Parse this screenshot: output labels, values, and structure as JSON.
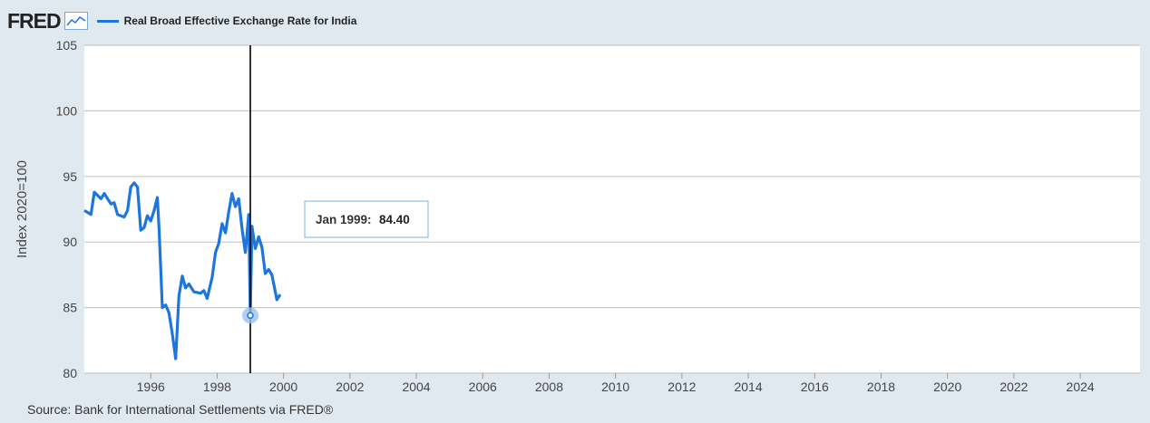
{
  "header": {
    "logo_text": "FRED",
    "logo_icon": "line-graph-icon",
    "series_label": "Real Broad Effective Exchange Rate for India",
    "series_color": "#1d76db"
  },
  "source_text": "Source: Bank for International Settlements via FRED®",
  "tooltip": {
    "date_label": "Jan 1999:",
    "value_label": "84.40",
    "x": 1999.0,
    "y": 84.4
  },
  "chart_data": {
    "type": "line",
    "ylabel": "Index 2020=100",
    "xlabel": "",
    "ylim": [
      80,
      105
    ],
    "xlim": [
      1994.0,
      2025.8
    ],
    "yticks": [
      80,
      85,
      90,
      95,
      100,
      105
    ],
    "xticks": [
      1996,
      1998,
      2000,
      2002,
      2004,
      2006,
      2008,
      2010,
      2012,
      2014,
      2016,
      2018,
      2020,
      2022,
      2024
    ],
    "grid": "horizontal",
    "series": [
      {
        "name": "Real Broad Effective Exchange Rate for India",
        "color": "#1d76db",
        "points": [
          [
            1994.0,
            92.4
          ],
          [
            1994.2,
            92.1
          ],
          [
            1994.3,
            93.8
          ],
          [
            1994.5,
            93.3
          ],
          [
            1994.6,
            93.7
          ],
          [
            1994.8,
            92.9
          ],
          [
            1994.9,
            93.0
          ],
          [
            1995.0,
            92.1
          ],
          [
            1995.2,
            91.9
          ],
          [
            1995.3,
            92.4
          ],
          [
            1995.4,
            94.2
          ],
          [
            1995.5,
            94.5
          ],
          [
            1995.6,
            94.2
          ],
          [
            1995.7,
            90.9
          ],
          [
            1995.8,
            91.1
          ],
          [
            1995.9,
            92.0
          ],
          [
            1996.0,
            91.6
          ],
          [
            1996.1,
            92.4
          ],
          [
            1996.2,
            93.4
          ],
          [
            1996.25,
            91.0
          ],
          [
            1996.35,
            85.0
          ],
          [
            1996.45,
            85.2
          ],
          [
            1996.55,
            84.6
          ],
          [
            1996.65,
            83.0
          ],
          [
            1996.75,
            81.1
          ],
          [
            1996.85,
            85.9
          ],
          [
            1996.95,
            87.4
          ],
          [
            1997.05,
            86.5
          ],
          [
            1997.15,
            86.8
          ],
          [
            1997.3,
            86.2
          ],
          [
            1997.5,
            86.1
          ],
          [
            1997.6,
            86.3
          ],
          [
            1997.7,
            85.7
          ],
          [
            1997.85,
            87.3
          ],
          [
            1997.95,
            89.2
          ],
          [
            1998.05,
            89.9
          ],
          [
            1998.15,
            91.4
          ],
          [
            1998.25,
            90.7
          ],
          [
            1998.35,
            92.3
          ],
          [
            1998.45,
            93.7
          ],
          [
            1998.55,
            92.7
          ],
          [
            1998.65,
            93.3
          ],
          [
            1998.75,
            91.0
          ],
          [
            1998.85,
            89.2
          ],
          [
            1998.95,
            92.1
          ],
          [
            1999.05,
            91.2
          ],
          [
            1999.15,
            89.5
          ],
          [
            1999.25,
            90.4
          ],
          [
            1999.35,
            89.6
          ],
          [
            1999.45,
            87.6
          ],
          [
            1999.55,
            87.9
          ],
          [
            1999.65,
            87.5
          ],
          [
            1999.8,
            85.6
          ],
          [
            1999.9,
            86.0
          ],
          [
            1999.0,
            84.4
          ]
        ]
      }
    ]
  }
}
